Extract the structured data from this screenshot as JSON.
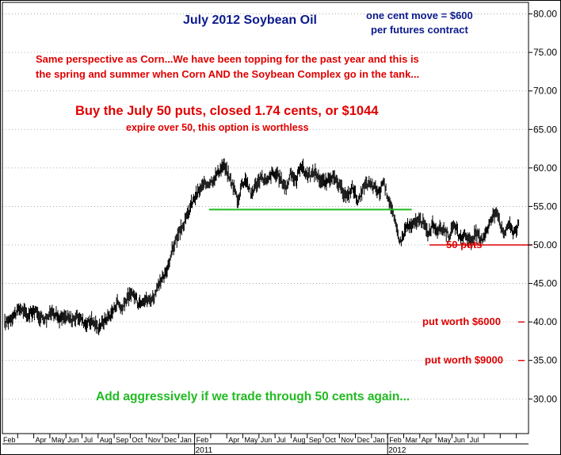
{
  "chart_data": {
    "type": "line",
    "title": "July 2012 Soybean Oil",
    "subtitle_lines": [
      "one cent move = $600",
      "per futures contract"
    ],
    "commentary": [
      "Same perspective as Corn...We have been topping for the past year and this is",
      "the spring and summer when Corn AND the Soybean Complex go in the tank..."
    ],
    "trade_headline": "Buy the July 50 puts, closed 1.74 cents, or $1044",
    "trade_note": "expire over 50, this option is worthless",
    "action_note": "Add aggressively if we trade through 50 cents again...",
    "ylim": [
      25.5,
      81.5
    ],
    "y_ticks": [
      "80.00",
      "75.00",
      "70.00",
      "65.00",
      "60.00",
      "55.00",
      "50.00",
      "45.00",
      "40.00",
      "35.00",
      "30.00"
    ],
    "x_tick_labels": [
      "Feb",
      "Apr",
      "May",
      "Jun",
      "Jul",
      "Aug",
      "Sep",
      "Oct",
      "Nov",
      "Dec",
      "Jan",
      "Feb",
      "Apr",
      "May",
      "Jun",
      "Jul",
      "Aug",
      "Sep",
      "Oct",
      "Nov",
      "Dec",
      "Jan",
      "Feb",
      "Mar",
      "Apr",
      "May",
      "Jun",
      "Jul"
    ],
    "year_labels": [
      {
        "label": "2011",
        "month_index": 12
      },
      {
        "label": "2012",
        "month_index": 24
      }
    ],
    "series": [
      {
        "name": "July 2012 Soybean Oil",
        "style": "daily bars",
        "points": [
          [
            0,
            39.8
          ],
          [
            0.5,
            40.8
          ],
          [
            1,
            41.8
          ],
          [
            1.4,
            40.8
          ],
          [
            1.8,
            41.5
          ],
          [
            2.2,
            40.7
          ],
          [
            2.6,
            40.5
          ],
          [
            3,
            41.5
          ],
          [
            3.4,
            40.4
          ],
          [
            3.8,
            40.6
          ],
          [
            4.2,
            40.3
          ],
          [
            4.6,
            40.7
          ],
          [
            5,
            39.8
          ],
          [
            5.4,
            40.2
          ],
          [
            5.8,
            39.3
          ],
          [
            6.3,
            40.4
          ],
          [
            6.7,
            41.3
          ],
          [
            7,
            42.7
          ],
          [
            7.3,
            41.6
          ],
          [
            7.6,
            43.2
          ],
          [
            8,
            43.6
          ],
          [
            8.3,
            42.5
          ],
          [
            8.6,
            43
          ],
          [
            9,
            42.8
          ],
          [
            9.3,
            43.4
          ],
          [
            9.6,
            44.8
          ],
          [
            10,
            46.2
          ],
          [
            10.3,
            48.5
          ],
          [
            10.6,
            50.5
          ],
          [
            11,
            52.2
          ],
          [
            11.3,
            53.5
          ],
          [
            11.6,
            55.3
          ],
          [
            12,
            56.8
          ],
          [
            12.3,
            57.6
          ],
          [
            12.6,
            58
          ],
          [
            13,
            58.6
          ],
          [
            13.3,
            59.6
          ],
          [
            13.6,
            60.4
          ],
          [
            14,
            58.6
          ],
          [
            14.3,
            57.2
          ],
          [
            14.5,
            55.6
          ],
          [
            14.7,
            57.8
          ],
          [
            15,
            58.6
          ],
          [
            15.3,
            56.5
          ],
          [
            15.6,
            57.8
          ],
          [
            16,
            58.8
          ],
          [
            16.3,
            58.1
          ],
          [
            16.6,
            59.3
          ],
          [
            17,
            58.9
          ],
          [
            17.3,
            58.1
          ],
          [
            17.5,
            57.4
          ],
          [
            17.8,
            59.4
          ],
          [
            18.1,
            58.2
          ],
          [
            18.4,
            60.5
          ],
          [
            18.7,
            59.3
          ],
          [
            19,
            59
          ],
          [
            19.3,
            59.5
          ],
          [
            19.6,
            58.5
          ],
          [
            20,
            58
          ],
          [
            20.3,
            59
          ],
          [
            20.6,
            58.2
          ],
          [
            21,
            57
          ],
          [
            21.3,
            56.2
          ],
          [
            21.6,
            57.5
          ],
          [
            22,
            55.7
          ],
          [
            22.3,
            57.3
          ],
          [
            22.6,
            58
          ],
          [
            23,
            57.4
          ],
          [
            23.3,
            56.7
          ],
          [
            23.5,
            58.3
          ],
          [
            23.7,
            57.1
          ],
          [
            24,
            55.2
          ],
          [
            24.3,
            52.5
          ],
          [
            24.6,
            50.4
          ],
          [
            25,
            52.5
          ],
          [
            25.3,
            52.3
          ],
          [
            25.6,
            53.2
          ],
          [
            26,
            53
          ],
          [
            26.3,
            51.5
          ],
          [
            26.6,
            52.6
          ],
          [
            27,
            51.8
          ],
          [
            27.3,
            52.2
          ],
          [
            27.6,
            51.2
          ],
          [
            28,
            52.5
          ],
          [
            28.3,
            50.6
          ],
          [
            28.6,
            51.4
          ],
          [
            29,
            50.4
          ],
          [
            29.3,
            51.6
          ],
          [
            29.6,
            50.5
          ],
          [
            30,
            52.2
          ],
          [
            30.3,
            53.5
          ],
          [
            30.6,
            54.6
          ],
          [
            31,
            51.2
          ],
          [
            31.3,
            52.8
          ],
          [
            31.6,
            51.7
          ],
          [
            32,
            52.6
          ]
        ]
      }
    ],
    "annotations": [
      {
        "type": "hline",
        "label": "",
        "value": 54.6,
        "from_month": 12.7,
        "to_month": 25.3,
        "color": "#22bb22"
      },
      {
        "type": "hline",
        "label": "50 puts",
        "value": 50.0,
        "from_month": 26.4,
        "to_month": 32.8,
        "color": "#dd0000"
      },
      {
        "type": "level",
        "label": "put worth $6000",
        "value": 40.0,
        "color": "#dd0000"
      },
      {
        "type": "level",
        "label": "put worth $9000",
        "value": 35.0,
        "color": "#dd0000"
      }
    ],
    "grid": "dotted",
    "colors": {
      "price": "#000000",
      "title": "#0b1a8c",
      "commentary": "#e00000",
      "support": "#22bb22",
      "action": "#22bb22",
      "axis_frame": "#000000"
    }
  }
}
